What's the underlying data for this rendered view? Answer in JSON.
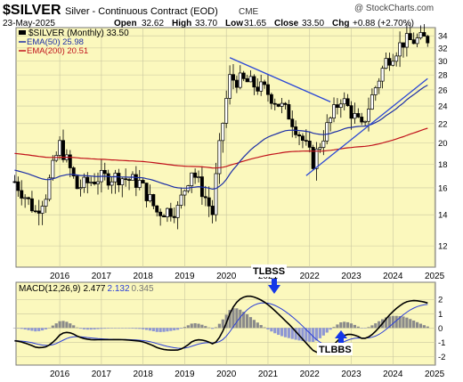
{
  "header": {
    "symbol": "$SILVER",
    "description": "Silver - Continuous Contract (EOD)",
    "exchange": "CME",
    "watermark": "@ StockCharts.com",
    "date": "23-May-2025",
    "open_label": "Open",
    "open": "32.62",
    "high_label": "High",
    "high": "33.70",
    "low_label": "Low",
    "low": "31.65",
    "close_label": "Close",
    "close": "33.50",
    "chg_label": "Chg",
    "chg": "+0.88 (+2.70%)"
  },
  "legend": {
    "series": "$SILVER (Monthly) 33.50",
    "ema50": "EMA(50) 25.98",
    "ema200": "EMA(200) 20.51"
  },
  "macd_legend": {
    "label": "MACD(12,26,9)",
    "macd": "2.477",
    "signal": "2.132",
    "hist": "0.345"
  },
  "annotations": {
    "tlbss": "TLBSS",
    "tlbbs": "TLBBS"
  },
  "colors": {
    "panel_bg": "#fbf8bd",
    "grid": "#c9c6a0",
    "ema50": "#1c2ea6",
    "ema200": "#c1121b",
    "trendline": "#2b47d6",
    "macd_line": "#000000",
    "signal_line": "#2a3ed8",
    "hist_pos": "#8a8a8a",
    "hist_neg": "#8e97d4",
    "arrow": "#1437e8"
  },
  "chart_data": [
    {
      "type": "candlestick",
      "title": "$SILVER (Monthly)",
      "x_axis": [
        "2016",
        "2017",
        "2018",
        "2019",
        "2020",
        "2021",
        "2022",
        "2023",
        "2024",
        "2025"
      ],
      "y_ticks": [
        12,
        14,
        16,
        18,
        20,
        22,
        24,
        26,
        28,
        30,
        32,
        34
      ],
      "ylim": [
        10.8,
        35.4
      ],
      "scale": "log",
      "grid": true,
      "series": [
        {
          "name": "EMA(50)",
          "last": 25.98
        },
        {
          "name": "EMA(200)",
          "last": 20.51
        }
      ],
      "close_path": [
        [
          "2015-06",
          16.5
        ],
        [
          "2015-12",
          14.2
        ],
        [
          "2016-03",
          15.5
        ],
        [
          "2016-07",
          19.8
        ],
        [
          "2016-12",
          16.0
        ],
        [
          "2017-06",
          16.8
        ],
        [
          "2017-12",
          16.9
        ],
        [
          "2018-06",
          16.4
        ],
        [
          "2018-11",
          14.2
        ],
        [
          "2019-05",
          14.4
        ],
        [
          "2019-09",
          17.5
        ],
        [
          "2020-03",
          14.1
        ],
        [
          "2020-08",
          27.5
        ],
        [
          "2021-01",
          27.0
        ],
        [
          "2021-06",
          26.0
        ],
        [
          "2022-01",
          23.0
        ],
        [
          "2022-08",
          18.2
        ],
        [
          "2023-04",
          25.0
        ],
        [
          "2023-10",
          21.5
        ],
        [
          "2024-05",
          30.0
        ],
        [
          "2024-10",
          33.0
        ],
        [
          "2025-05",
          33.5
        ]
      ]
    },
    {
      "type": "line",
      "title": "MACD(12,26,9)",
      "x_axis": [
        "2016",
        "2017",
        "2018",
        "2019",
        "2020",
        "2021",
        "2022",
        "2023",
        "2024",
        "2025"
      ],
      "y_ticks": [
        -2,
        -1,
        0,
        1,
        2
      ],
      "ylim": [
        -2.6,
        3.2
      ],
      "series": [
        {
          "name": "MACD",
          "last": 2.477
        },
        {
          "name": "Signal",
          "last": 2.132
        },
        {
          "name": "Histogram",
          "last": 0.345
        }
      ]
    }
  ]
}
